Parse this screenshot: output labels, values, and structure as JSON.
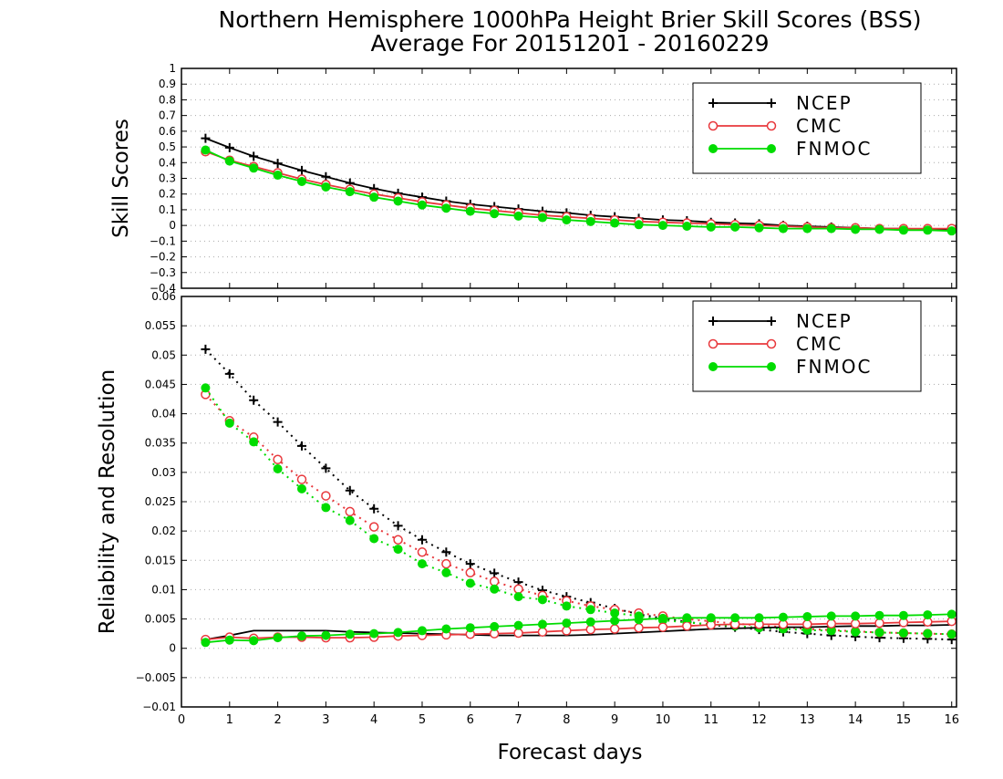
{
  "chart_data": {
    "type": "line",
    "title": "Northern Hemisphere 1000hPa Height Brier Skill Scores (BSS)",
    "subtitle": "Average For 20151201 - 20160229",
    "xlabel": "Forecast days",
    "x_ticks": [
      "0",
      "1",
      "2",
      "3",
      "4",
      "5",
      "6",
      "7",
      "8",
      "9",
      "10",
      "11",
      "12",
      "13",
      "14",
      "15",
      "16"
    ],
    "xlim": [
      0,
      16.1
    ],
    "x": [
      0.5,
      1.0,
      1.5,
      2.0,
      2.5,
      3.0,
      3.5,
      4.0,
      4.5,
      5.0,
      5.5,
      6.0,
      6.5,
      7.0,
      7.5,
      8.0,
      8.5,
      9.0,
      9.5,
      10.0,
      10.5,
      11.0,
      11.5,
      12.0,
      12.5,
      13.0,
      13.5,
      14.0,
      14.5,
      15.0,
      15.5,
      16.0
    ],
    "legend_position": "top-right",
    "colors": {
      "NCEP": "#000000",
      "CMC": "#e8383c",
      "FNMOC": "#00dc00",
      "grid": "#aaaaaa"
    },
    "panels": [
      {
        "id": "bss",
        "ylabel": "Skill Scores",
        "ylim": [
          -0.4,
          1
        ],
        "y_ticks": [
          "1",
          "0.9",
          "0.8",
          "0.7",
          "0.6",
          "0.5",
          "0.4",
          "0.3",
          "0.2",
          "0.1",
          "0",
          "−0.1",
          "−0.2",
          "−0.3",
          "−0.4"
        ],
        "grid": true,
        "series": [
          {
            "name": "NCEP",
            "style": "solid",
            "marker": "plus",
            "values": [
              0.555,
              0.495,
              0.44,
              0.395,
              0.35,
              0.31,
              0.27,
              0.235,
              0.205,
              0.18,
              0.155,
              0.135,
              0.12,
              0.105,
              0.09,
              0.08,
              0.065,
              0.055,
              0.045,
              0.035,
              0.03,
              0.02,
              0.015,
              0.01,
              0.0,
              -0.005,
              -0.01,
              -0.015,
              -0.02,
              -0.02,
              -0.025,
              -0.025
            ]
          },
          {
            "name": "CMC",
            "style": "solid",
            "marker": "open-circle",
            "values": [
              0.47,
              0.415,
              0.375,
              0.335,
              0.295,
              0.26,
              0.23,
              0.2,
              0.175,
              0.15,
              0.13,
              0.11,
              0.095,
              0.08,
              0.065,
              0.055,
              0.045,
              0.035,
              0.025,
              0.02,
              0.015,
              0.01,
              0.005,
              0.0,
              -0.005,
              -0.01,
              -0.015,
              -0.015,
              -0.02,
              -0.02,
              -0.02,
              -0.02
            ]
          },
          {
            "name": "FNMOC",
            "style": "solid",
            "marker": "filled-circle",
            "values": [
              0.48,
              0.41,
              0.365,
              0.32,
              0.28,
              0.245,
              0.215,
              0.18,
              0.155,
              0.13,
              0.11,
              0.09,
              0.075,
              0.06,
              0.05,
              0.035,
              0.025,
              0.015,
              0.005,
              0.0,
              -0.005,
              -0.01,
              -0.01,
              -0.015,
              -0.02,
              -0.02,
              -0.02,
              -0.025,
              -0.025,
              -0.03,
              -0.03,
              -0.035
            ]
          }
        ]
      },
      {
        "id": "rel-res",
        "ylabel": "Reliability and Resolution",
        "ylim": [
          -0.01,
          0.06
        ],
        "y_ticks": [
          "0.06",
          "0.055",
          "0.05",
          "0.045",
          "0.04",
          "0.035",
          "0.03",
          "0.025",
          "0.02",
          "0.015",
          "0.01",
          "0.005",
          "0",
          "−0.005",
          "−0.01"
        ],
        "grid": true,
        "series": [
          {
            "name": "NCEP",
            "kind": "resolution",
            "style": "dotted",
            "marker": "plus",
            "values": [
              0.051,
              0.0468,
              0.0423,
              0.0386,
              0.0345,
              0.0307,
              0.0269,
              0.0238,
              0.0209,
              0.0185,
              0.0164,
              0.0144,
              0.0128,
              0.0113,
              0.0099,
              0.0088,
              0.0078,
              0.0068,
              0.0058,
              0.0051,
              0.0045,
              0.004,
              0.0036,
              0.0032,
              0.0028,
              0.0025,
              0.0022,
              0.002,
              0.0018,
              0.0017,
              0.0016,
              0.0015
            ]
          },
          {
            "name": "CMC",
            "kind": "resolution",
            "style": "dotted",
            "marker": "open-circle",
            "values": [
              0.0433,
              0.0388,
              0.036,
              0.0322,
              0.0288,
              0.026,
              0.0233,
              0.0207,
              0.0185,
              0.0164,
              0.0144,
              0.0129,
              0.0114,
              0.0101,
              0.009,
              0.0081,
              0.0072,
              0.0066,
              0.006,
              0.0055,
              0.005,
              0.0046,
              0.0042,
              0.0039,
              0.0036,
              0.0033,
              0.0031,
              0.0029,
              0.0027,
              0.0026,
              0.0025,
              0.0024
            ]
          },
          {
            "name": "FNMOC",
            "kind": "resolution",
            "style": "dotted",
            "marker": "filled-circle",
            "values": [
              0.0444,
              0.0384,
              0.0352,
              0.0306,
              0.0272,
              0.024,
              0.0218,
              0.0187,
              0.0169,
              0.0144,
              0.0129,
              0.0111,
              0.0101,
              0.0088,
              0.0083,
              0.0072,
              0.0066,
              0.006,
              0.0055,
              0.0048,
              0.0044,
              0.0041,
              0.0038,
              0.0035,
              0.0033,
              0.0031,
              0.003,
              0.0028,
              0.0027,
              0.0026,
              0.0025,
              0.0024
            ]
          },
          {
            "name": "NCEP",
            "kind": "reliability",
            "style": "solid",
            "marker": "none",
            "values": [
              0.0015,
              0.0022,
              0.003,
              0.003,
              0.003,
              0.003,
              0.0028,
              0.0027,
              0.0026,
              0.0025,
              0.0024,
              0.0023,
              0.0022,
              0.0022,
              0.0022,
              0.0022,
              0.0023,
              0.0025,
              0.0027,
              0.0029,
              0.0031,
              0.0033,
              0.0034,
              0.0035,
              0.0036,
              0.0036,
              0.0037,
              0.0038,
              0.0038,
              0.0039,
              0.0039,
              0.004
            ]
          },
          {
            "name": "CMC",
            "kind": "reliability",
            "style": "solid",
            "marker": "open-circle",
            "values": [
              0.0015,
              0.0019,
              0.0017,
              0.0019,
              0.0019,
              0.0018,
              0.0018,
              0.0019,
              0.0021,
              0.0022,
              0.0023,
              0.0024,
              0.0025,
              0.0026,
              0.0028,
              0.003,
              0.0032,
              0.0033,
              0.0035,
              0.0036,
              0.0038,
              0.004,
              0.0041,
              0.0041,
              0.0041,
              0.0041,
              0.0042,
              0.0042,
              0.0043,
              0.0044,
              0.0045,
              0.0046
            ]
          },
          {
            "name": "FNMOC",
            "kind": "reliability",
            "style": "solid",
            "marker": "filled-circle",
            "values": [
              0.001,
              0.0014,
              0.0013,
              0.0018,
              0.0021,
              0.0022,
              0.0024,
              0.0025,
              0.0027,
              0.003,
              0.0033,
              0.0035,
              0.0037,
              0.0039,
              0.0041,
              0.0043,
              0.0045,
              0.0047,
              0.0049,
              0.0051,
              0.0052,
              0.0052,
              0.0052,
              0.0052,
              0.0053,
              0.0054,
              0.0055,
              0.0055,
              0.0056,
              0.0056,
              0.0057,
              0.0058
            ]
          }
        ]
      }
    ]
  }
}
